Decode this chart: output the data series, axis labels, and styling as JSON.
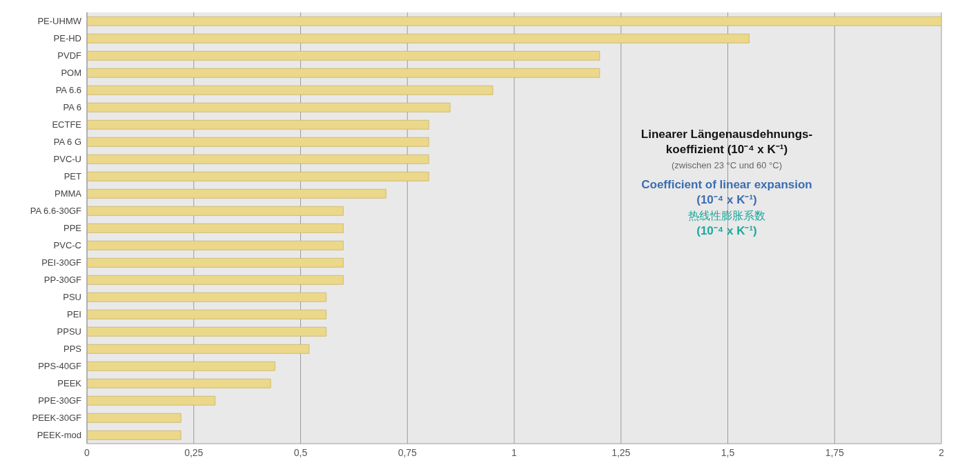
{
  "chart_data": {
    "type": "bar",
    "orientation": "horizontal",
    "categories": [
      "PE-UHMW",
      "PE-HD",
      "PVDF",
      "POM",
      "PA 6.6",
      "PA 6",
      "ECTFE",
      "PA 6 G",
      "PVC-U",
      "PET",
      "PMMA",
      "PA 6.6-30GF",
      "PPE",
      "PVC-C",
      "PEI-30GF",
      "PP-30GF",
      "PSU",
      "PEI",
      "PPSU",
      "PPS",
      "PPS-40GF",
      "PEEK",
      "PPE-30GF",
      "PEEK-30GF",
      "PEEK-mod"
    ],
    "values": [
      2.0,
      1.55,
      1.2,
      1.2,
      0.95,
      0.85,
      0.8,
      0.8,
      0.8,
      0.8,
      0.7,
      0.6,
      0.6,
      0.6,
      0.6,
      0.6,
      0.56,
      0.56,
      0.56,
      0.52,
      0.44,
      0.43,
      0.3,
      0.22,
      0.22
    ],
    "color": "#ecd88a",
    "xlim": [
      0,
      2
    ],
    "xticks": [
      0,
      {
        "value": 0.25,
        "label": "0,25"
      },
      {
        "value": 0.5,
        "label": "0,5"
      },
      {
        "value": 0.75,
        "label": "0,75"
      },
      1,
      {
        "value": 1.25,
        "label": "1,25"
      },
      {
        "value": 1.5,
        "label": "1,5"
      },
      {
        "value": 1.75,
        "label": "1,75"
      },
      2
    ],
    "grid": "x",
    "annotations": [
      "Linearer Längenausdehnungs-",
      "koeffizient (10⁻⁴ x K⁻¹)",
      "(zwischen 23 °C und 60 °C)",
      "Coefficient of linear expansion",
      "(10⁻⁴ x K⁻¹)",
      "热线性膨胀系数",
      "(10⁻⁴ x K⁻¹)"
    ]
  }
}
